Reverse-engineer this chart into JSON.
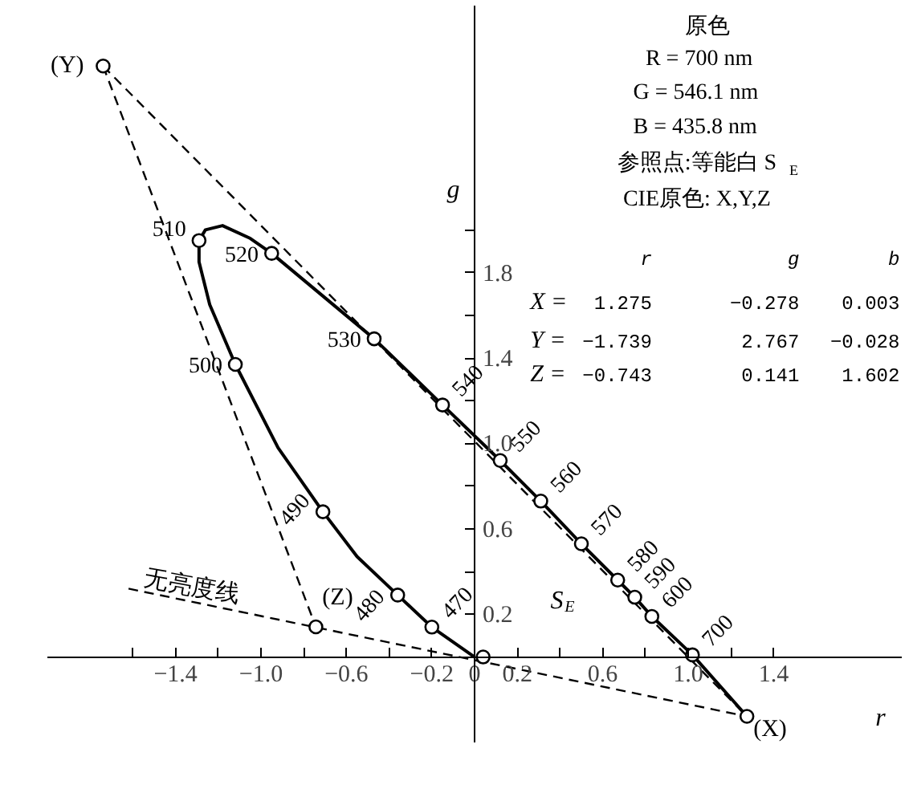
{
  "chart_data": {
    "type": "line",
    "xlabel": "r",
    "ylabel": "g",
    "xlim": [
      -2.0,
      2.0
    ],
    "ylim": [
      -0.4,
      3.05
    ],
    "xticks": [
      {
        "value": -1.6,
        "label": null
      },
      -1.4,
      {
        "value": -1.2,
        "label": null
      },
      {
        "value": -1.0,
        "label": "−1.0"
      },
      {
        "value": -0.8,
        "label": null
      },
      -0.6,
      {
        "value": -0.4,
        "label": null
      },
      -0.2,
      0,
      0.2,
      {
        "value": 0.4,
        "label": null
      },
      0.6,
      {
        "value": 0.8,
        "label": null
      },
      {
        "value": 1.0,
        "label": "1.0"
      },
      {
        "value": 1.2,
        "label": null
      },
      1.4
    ],
    "yticks": [
      0.2,
      {
        "value": 0.4,
        "label": null
      },
      0.6,
      {
        "value": 0.8,
        "label": null
      },
      {
        "value": 1.0,
        "label": "1.0"
      },
      {
        "value": 1.2,
        "label": null
      },
      1.4,
      {
        "value": 1.6,
        "label": null
      },
      1.8,
      {
        "value": 2.0,
        "label": null
      }
    ],
    "grid": false,
    "series": [
      {
        "color": "#000000",
        "line_style": "solid",
        "marker": "none",
        "x": [
          0.0,
          -0.2,
          -0.36,
          -0.55,
          -0.71,
          -0.92,
          -1.12,
          -1.24,
          -1.29,
          -1.29,
          -1.26,
          -1.18,
          -1.05,
          -0.95,
          -0.47,
          -0.15,
          0.12,
          0.31,
          0.5,
          0.67,
          0.75,
          0.83,
          1.02,
          1.275
        ],
        "values": [
          0.0,
          0.14,
          0.29,
          0.47,
          0.68,
          0.98,
          1.37,
          1.65,
          1.85,
          1.95,
          2.0,
          2.02,
          1.96,
          1.89,
          1.49,
          1.18,
          0.92,
          0.73,
          0.53,
          0.36,
          0.28,
          0.19,
          0.01,
          -0.278
        ]
      },
      {
        "color": "#000000",
        "line_style": "dashed",
        "marker": "none",
        "x": [
          -1.739,
          1.275
        ],
        "values": [
          2.767,
          -0.278
        ]
      },
      {
        "color": "#000000",
        "line_style": "dashed",
        "marker": "none",
        "x": [
          -1.739,
          -0.743
        ],
        "values": [
          2.767,
          0.141
        ]
      },
      {
        "color": "#000000",
        "line_style": "dashed",
        "marker": "none",
        "x": [
          -1.62,
          1.275
        ],
        "values": [
          0.32,
          -0.278
        ]
      },
      {
        "type": "scatter",
        "color": "#000000",
        "marker": "circle",
        "x": [
          -0.2,
          -0.36,
          -0.71,
          -1.12,
          -1.29,
          -0.95,
          -0.47,
          -0.15,
          0.12,
          0.31,
          0.5,
          0.67,
          0.75,
          0.83,
          1.02
        ],
        "values": [
          0.14,
          0.29,
          0.68,
          1.37,
          1.95,
          1.89,
          1.49,
          1.18,
          0.92,
          0.73,
          0.53,
          0.36,
          0.28,
          0.19,
          0.01
        ]
      },
      {
        "type": "scatter",
        "color": "#000000",
        "marker": "circle",
        "x": [
          -1.739,
          1.275,
          -0.743,
          0.04
        ],
        "values": [
          2.767,
          -0.278,
          0.141,
          0.0
        ]
      }
    ],
    "annotations": [
      "原色",
      "R = 700 nm",
      "G = 546.1 nm",
      "B = 435.8 nm",
      "参照点:等能白 S$_{E}$",
      "CIE原色: X,Y,Z",
      "r g b",
      "X = 1.275 −0.278 0.003",
      "Y = −1.739 2.767 −0.028",
      "Z = −0.743 0.141 1.602",
      "S$_{E}$",
      {
        "text": "470",
        "x": -0.2,
        "y": 0.14
      },
      {
        "text": "480",
        "x": -0.36,
        "y": 0.29
      },
      {
        "text": "490",
        "x": -0.71,
        "y": 0.68
      },
      {
        "text": "500",
        "x": -1.12,
        "y": 1.37
      },
      {
        "text": "510",
        "x": -1.29,
        "y": 1.95
      },
      {
        "text": "520",
        "x": -0.95,
        "y": 1.89
      },
      {
        "text": "530",
        "x": -0.47,
        "y": 1.49
      },
      {
        "text": "540",
        "x": -0.15,
        "y": 1.18
      },
      {
        "text": "550",
        "x": 0.12,
        "y": 0.92
      },
      {
        "text": "560",
        "x": 0.31,
        "y": 0.73
      },
      {
        "text": "570",
        "x": 0.5,
        "y": 0.53
      },
      {
        "text": "580",
        "x": 0.67,
        "y": 0.36
      },
      {
        "text": "590",
        "x": 0.75,
        "y": 0.28
      },
      {
        "text": "600",
        "x": 0.83,
        "y": 0.19
      },
      {
        "text": "700",
        "x": 1.02,
        "y": 0.01
      },
      {
        "text": "(Y)",
        "x": -1.739,
        "y": 2.767
      },
      {
        "text": "(X)",
        "x": 1.275,
        "y": -0.278
      },
      {
        "text": "(Z)",
        "x": -0.743,
        "y": 0.141
      },
      {
        "text": "无亮度线",
        "x": -1.32,
        "y": 0.26
      }
    ]
  }
}
